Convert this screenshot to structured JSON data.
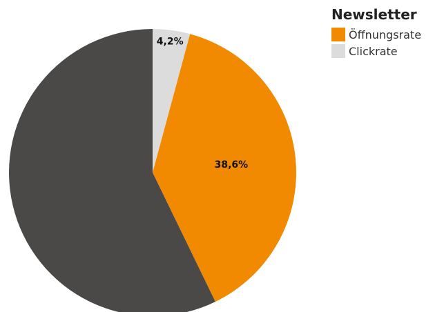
{
  "chart_data": {
    "type": "pie",
    "title": "Newsletter",
    "start_angle_deg": 0,
    "direction": "clockwise",
    "slices": [
      {
        "name": "",
        "value": 4.2,
        "label": "4,2%",
        "color": "#dcdcdc"
      },
      {
        "name": "",
        "value": 38.6,
        "label": "38,6%",
        "color": "#f18a00"
      },
      {
        "name": "",
        "value": 57.2,
        "label": "",
        "color": "#4a4948"
      }
    ],
    "legend": {
      "position": "top-right",
      "entries": [
        {
          "label": "Öffnungsrate",
          "color": "#f18a00"
        },
        {
          "label": "Clickrate",
          "color": "#dcdcdc"
        }
      ]
    }
  }
}
